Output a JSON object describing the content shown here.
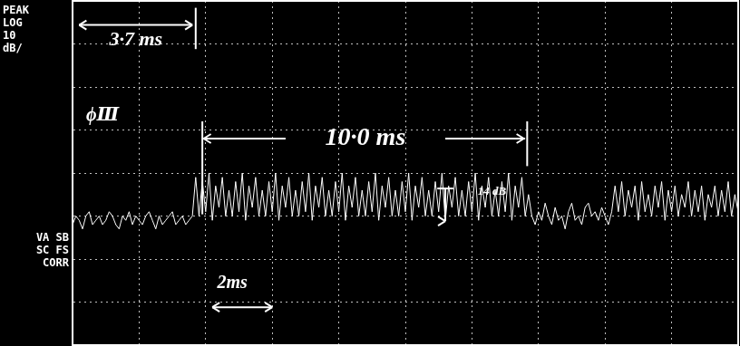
{
  "chart_data": {
    "type": "line",
    "panel_labels": [
      "PEAK",
      "LOG",
      "10",
      "dB/"
    ],
    "status_labels": [
      "VA SB",
      "SC FS",
      "CORR"
    ],
    "annotations": [
      "3·7 ms",
      "ϕⅢ",
      "10·0 ms",
      "14 dB",
      "2ms"
    ],
    "color": "#ffffff",
    "grid": true,
    "tick_labels": false,
    "xlim": [
      0,
      20
    ],
    "xticks": [
      0,
      2,
      4,
      6,
      8,
      10,
      12,
      14,
      16,
      18,
      20
    ],
    "ylim": [
      -80,
      0
    ],
    "yticks": [
      -80,
      -70,
      -60,
      -50,
      -40,
      -30,
      -20,
      -10,
      0
    ],
    "x": [
      0,
      0.1,
      0.2,
      0.3,
      0.4,
      0.5,
      0.6,
      0.7,
      0.8,
      0.9,
      1,
      1.1,
      1.2,
      1.3,
      1.4,
      1.5,
      1.6,
      1.7,
      1.8,
      1.9,
      2,
      2.1,
      2.2,
      2.3,
      2.4,
      2.5,
      2.6,
      2.7,
      2.8,
      2.9,
      3,
      3.1,
      3.2,
      3.3,
      3.4,
      3.5,
      3.6,
      3.7,
      3.8,
      3.9,
      4,
      4.1,
      4.2,
      4.3,
      4.4,
      4.5,
      4.6,
      4.7,
      4.8,
      4.9,
      5,
      5.1,
      5.2,
      5.3,
      5.4,
      5.5,
      5.6,
      5.7,
      5.8,
      5.9,
      6,
      6.1,
      6.2,
      6.3,
      6.4,
      6.5,
      6.6,
      6.7,
      6.8,
      6.9,
      7,
      7.1,
      7.2,
      7.3,
      7.4,
      7.5,
      7.6,
      7.7,
      7.8,
      7.9,
      8,
      8.1,
      8.2,
      8.3,
      8.4,
      8.5,
      8.6,
      8.7,
      8.8,
      8.9,
      9,
      9.1,
      9.2,
      9.3,
      9.4,
      9.5,
      9.6,
      9.7,
      9.8,
      9.9,
      10,
      10.1,
      10.2,
      10.3,
      10.4,
      10.5,
      10.6,
      10.7,
      10.8,
      10.9,
      11,
      11.1,
      11.2,
      11.3,
      11.4,
      11.5,
      11.6,
      11.7,
      11.8,
      11.9,
      12,
      12.1,
      12.2,
      12.3,
      12.4,
      12.5,
      12.6,
      12.7,
      12.8,
      12.9,
      13,
      13.1,
      13.2,
      13.3,
      13.4,
      13.5,
      13.6,
      13.7,
      13.8,
      13.9,
      14,
      14.1,
      14.2,
      14.3,
      14.4,
      14.5,
      14.6,
      14.7,
      14.8,
      14.9,
      15,
      15.1,
      15.2,
      15.3,
      15.4,
      15.5,
      15.6,
      15.7,
      15.8,
      15.9,
      16,
      16.1,
      16.2,
      16.3,
      16.4,
      16.5,
      16.6,
      16.7,
      16.8,
      16.9,
      17,
      17.1,
      17.2,
      17.3,
      17.4,
      17.5,
      17.6,
      17.7,
      17.8,
      17.9,
      18,
      18.1,
      18.2,
      18.3,
      18.4,
      18.5,
      18.6,
      18.7,
      18.8,
      18.9,
      19,
      19.1,
      19.2,
      19.3,
      19.4,
      19.5,
      19.6,
      19.7,
      19.8,
      19.9,
      20
    ],
    "values": [
      -52,
      -50,
      -51,
      -53,
      -50,
      -49,
      -52,
      -51,
      -50,
      -52,
      -51,
      -49,
      -50,
      -52,
      -53,
      -50,
      -51,
      -49,
      -52,
      -50,
      -51,
      -52,
      -50,
      -49,
      -51,
      -53,
      -50,
      -52,
      -51,
      -50,
      -49,
      -52,
      -51,
      -50,
      -52,
      -51,
      -50,
      -41,
      -50,
      -42,
      -49,
      -40,
      -51,
      -43,
      -48,
      -41,
      -50,
      -44,
      -50,
      -42,
      -49,
      -40,
      -51,
      -43,
      -48,
      -41,
      -50,
      -44,
      -50,
      -42,
      -49,
      -40,
      -51,
      -43,
      -48,
      -41,
      -50,
      -44,
      -50,
      -42,
      -49,
      -40,
      -51,
      -43,
      -48,
      -41,
      -50,
      -44,
      -50,
      -42,
      -49,
      -40,
      -51,
      -43,
      -48,
      -41,
      -50,
      -44,
      -50,
      -42,
      -49,
      -40,
      -51,
      -43,
      -48,
      -41,
      -50,
      -44,
      -50,
      -42,
      -49,
      -40,
      -51,
      -43,
      -48,
      -41,
      -50,
      -44,
      -50,
      -42,
      -49,
      -40,
      -51,
      -43,
      -48,
      -41,
      -50,
      -44,
      -50,
      -42,
      -49,
      -40,
      -51,
      -43,
      -48,
      -41,
      -50,
      -44,
      -50,
      -42,
      -49,
      -40,
      -51,
      -43,
      -48,
      -41,
      -50,
      -45,
      -50,
      -52,
      -49,
      -51,
      -47,
      -50,
      -52,
      -48,
      -51,
      -50,
      -53,
      -49,
      -47,
      -51,
      -50,
      -52,
      -48,
      -47,
      -50,
      -49,
      -51,
      -48,
      -50,
      -52,
      -49,
      -43,
      -49,
      -42,
      -50,
      -44,
      -48,
      -43,
      -51,
      -42,
      -49,
      -45,
      -50,
      -43,
      -48,
      -42,
      -51,
      -44,
      -49,
      -43,
      -50,
      -45,
      -48,
      -42,
      -50,
      -44,
      -49,
      -43,
      -51,
      -45,
      -48,
      -43,
      -50,
      -44,
      -49,
      -42,
      -50,
      -45,
      -49
    ]
  }
}
